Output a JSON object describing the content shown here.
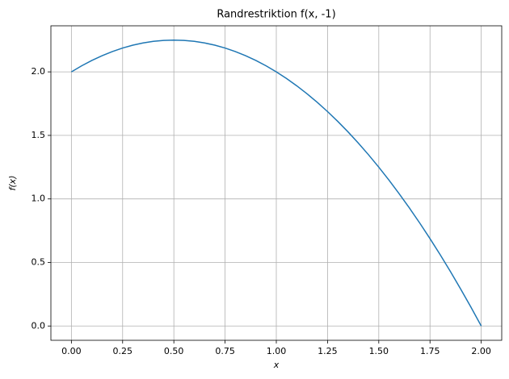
{
  "chart_data": {
    "type": "line",
    "title": "Randrestriktion f(x, -1)",
    "x_label": "x",
    "y_label": "f(x)",
    "x": [
      0,
      0.05,
      0.1,
      0.15,
      0.2,
      0.25,
      0.3,
      0.35,
      0.4,
      0.45,
      0.5,
      0.55,
      0.6,
      0.65,
      0.7,
      0.75,
      0.8,
      0.85,
      0.9,
      0.95,
      1,
      1.05,
      1.1,
      1.15,
      1.2,
      1.25,
      1.3,
      1.35,
      1.4,
      1.45,
      1.5,
      1.55,
      1.6,
      1.65,
      1.7,
      1.75,
      1.8,
      1.85,
      1.9,
      1.95,
      2
    ],
    "series": [
      {
        "name": "f(x, -1)",
        "color": "#1f77b4",
        "values": [
          2,
          2.0475,
          2.09,
          2.1275,
          2.16,
          2.1875,
          2.21,
          2.2275,
          2.24,
          2.2475,
          2.25,
          2.2475,
          2.24,
          2.2275,
          2.21,
          2.1875,
          2.16,
          2.1275,
          2.09,
          2.0475,
          2,
          1.9475,
          1.89,
          1.8275,
          1.76,
          1.6875,
          1.61,
          1.5275,
          1.44,
          1.3475,
          1.25,
          1.1475,
          1.04,
          0.9275,
          0.81,
          0.6875,
          0.56,
          0.4275,
          0.29,
          0.1475,
          0
        ]
      }
    ],
    "xlim": [
      -0.1,
      2.1
    ],
    "ylim": [
      -0.1125,
      2.3625
    ],
    "xticks": [
      {
        "value": 0,
        "label": "0.00"
      },
      {
        "value": 0.25,
        "label": "0.25"
      },
      {
        "value": 0.5,
        "label": "0.50"
      },
      {
        "value": 0.75,
        "label": "0.75"
      },
      {
        "value": 1,
        "label": "1.00"
      },
      {
        "value": 1.25,
        "label": "1.25"
      },
      {
        "value": 1.5,
        "label": "1.50"
      },
      {
        "value": 1.75,
        "label": "1.75"
      },
      {
        "value": 2,
        "label": "2.00"
      }
    ],
    "yticks": [
      {
        "value": 0,
        "label": "0.0"
      },
      0.5,
      {
        "value": 1,
        "label": "1.0"
      },
      1.5,
      {
        "value": 2,
        "label": "2.0"
      }
    ],
    "grid": true
  }
}
